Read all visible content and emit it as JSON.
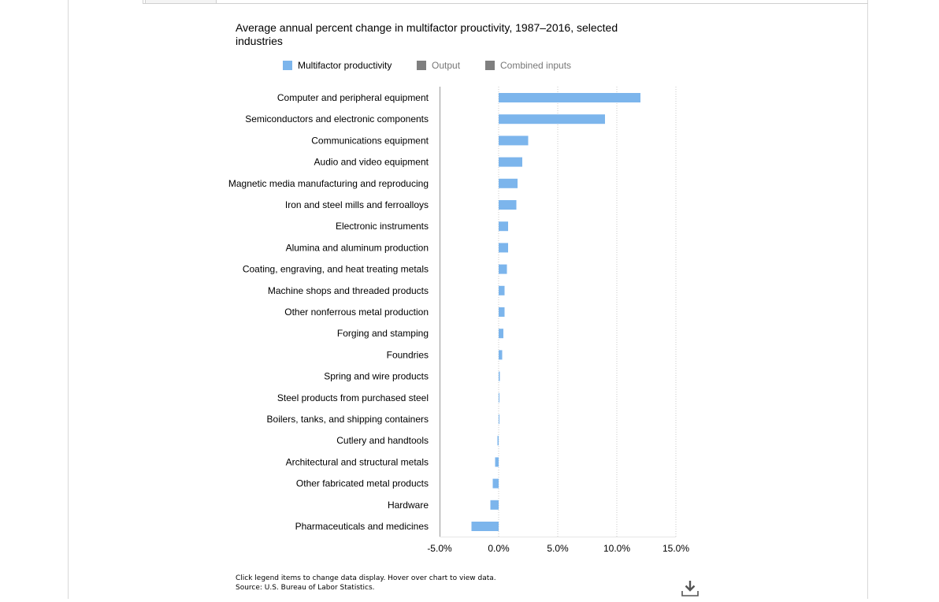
{
  "colors": {
    "mfp": "#7cb5ec",
    "output": "#7f7f7f",
    "inputs": "#7f7f7f",
    "axis": "#999999",
    "grid": "#c9c9c9"
  },
  "legend": [
    {
      "key": "mfp",
      "label": "Multifactor productivity",
      "active": true
    },
    {
      "key": "output",
      "label": "Output",
      "active": false
    },
    {
      "key": "inputs",
      "label": "Combined inputs",
      "active": false
    }
  ],
  "footnote": {
    "line1": "Click legend items to change data display. Hover over chart to view data.",
    "line2": "Source: U.S. Bureau of Labor Statistics."
  },
  "icons": {
    "download": "download-icon"
  },
  "chart_data": {
    "type": "bar",
    "orientation": "horizontal",
    "title": "Average annual percent change in multifactor proucti​vity, 1987–2016, selected industries",
    "categories": [
      "Computer and peripheral equipment",
      "Semiconductors and electronic components",
      "Communications equipment",
      "Audio and video equipment",
      "Magnetic media manufacturing and reproducing",
      "Iron and steel mills and ferroalloys",
      "Electronic instruments",
      "Alumina and aluminum production",
      "Coating, engraving, and heat treating metals",
      "Machine shops and threaded products",
      "Other nonferrous metal production",
      "Forging and stamping",
      "Foundries",
      "Spring and wire products",
      "Steel products from purchased steel",
      "Boilers, tanks, and shipping containers",
      "Cutlery and handtools",
      "Architectural and structural metals",
      "Other fabricated metal products",
      "Hardware",
      "Pharmaceuticals and medicines"
    ],
    "series": [
      {
        "name": "Multifactor productivity",
        "values": [
          12.0,
          9.0,
          2.5,
          2.0,
          1.6,
          1.5,
          0.8,
          0.8,
          0.7,
          0.5,
          0.5,
          0.4,
          0.3,
          0.1,
          0.05,
          0.05,
          -0.1,
          -0.3,
          -0.5,
          -0.7,
          -2.3
        ]
      }
    ],
    "xlim": [
      -5.0,
      15.0
    ],
    "xticks": [
      -5.0,
      0.0,
      5.0,
      10.0,
      15.0
    ],
    "xtick_labels": [
      "-5.0%",
      "0.0%",
      "5.0%",
      "10.0%",
      "15.0%"
    ],
    "grid": true,
    "legend_position": "top"
  }
}
